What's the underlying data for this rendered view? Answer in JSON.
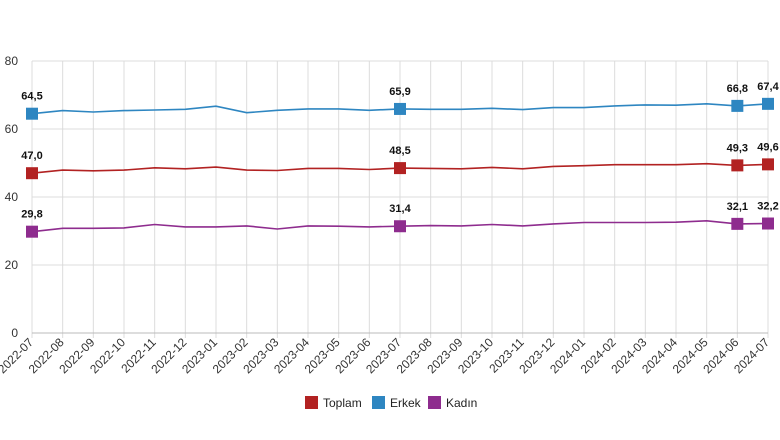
{
  "chart_data": {
    "type": "line",
    "title": "",
    "xlabel": "",
    "ylabel": "",
    "ylim": [
      0,
      80
    ],
    "yticks": [
      0,
      20,
      40,
      60,
      80
    ],
    "grid": true,
    "legend_position": "bottom",
    "categories": [
      "2022-07",
      "2022-08",
      "2022-09",
      "2022-10",
      "2022-11",
      "2022-12",
      "2023-01",
      "2023-02",
      "2023-03",
      "2023-04",
      "2023-05",
      "2023-06",
      "2023-07",
      "2023-08",
      "2023-09",
      "2023-10",
      "2023-11",
      "2023-12",
      "2024-01",
      "2024-02",
      "2024-03",
      "2024-04",
      "2024-05",
      "2024-06",
      "2024-07"
    ],
    "series": [
      {
        "name": "Toplam",
        "color": "#b22222",
        "values": [
          47.0,
          47.9,
          47.7,
          47.9,
          48.6,
          48.3,
          48.8,
          47.9,
          47.8,
          48.4,
          48.4,
          48.1,
          48.5,
          48.4,
          48.3,
          48.7,
          48.3,
          49.0,
          49.2,
          49.5,
          49.5,
          49.5,
          49.8,
          49.3,
          49.6
        ],
        "labels": [
          {
            "index": 0,
            "text": "47,0"
          },
          {
            "index": 12,
            "text": "48,5"
          },
          {
            "index": 23,
            "text": "49,3"
          },
          {
            "index": 24,
            "text": "49,6"
          }
        ]
      },
      {
        "name": "Erkek",
        "color": "#2e86c1",
        "values": [
          64.5,
          65.4,
          65.0,
          65.4,
          65.6,
          65.8,
          66.7,
          64.8,
          65.5,
          65.9,
          65.9,
          65.5,
          65.9,
          65.8,
          65.8,
          66.1,
          65.7,
          66.3,
          66.3,
          66.8,
          67.1,
          67.0,
          67.4,
          66.8,
          67.4
        ],
        "labels": [
          {
            "index": 0,
            "text": "64,5"
          },
          {
            "index": 12,
            "text": "65,9"
          },
          {
            "index": 23,
            "text": "66,8"
          },
          {
            "index": 24,
            "text": "67,4"
          }
        ]
      },
      {
        "name": "Kadın",
        "color": "#8e2c8e",
        "values": [
          29.8,
          30.8,
          30.8,
          30.9,
          31.9,
          31.2,
          31.2,
          31.5,
          30.6,
          31.5,
          31.4,
          31.2,
          31.4,
          31.6,
          31.5,
          31.9,
          31.5,
          32.1,
          32.5,
          32.5,
          32.5,
          32.6,
          33.0,
          32.1,
          32.2
        ],
        "labels": [
          {
            "index": 0,
            "text": "29,8"
          },
          {
            "index": 12,
            "text": "31,4"
          },
          {
            "index": 23,
            "text": "32,1"
          },
          {
            "index": 24,
            "text": "32,2"
          }
        ]
      }
    ],
    "markers": [
      0,
      12,
      23,
      24
    ]
  }
}
